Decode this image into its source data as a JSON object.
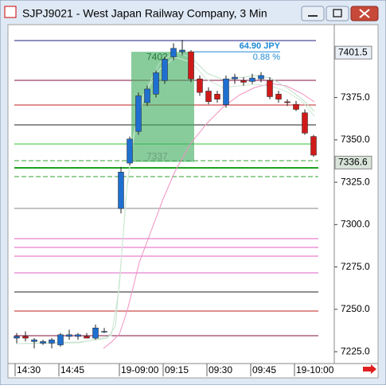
{
  "chart_data": {
    "type": "candlestick",
    "title": "SJPJ9021 - West Japan Railway Company, 3 Min",
    "categories": [
      "14:30",
      null,
      null,
      null,
      null,
      "14:45",
      null,
      null,
      null,
      null,
      null,
      "19-09:00",
      null,
      null,
      null,
      null,
      "09:15",
      null,
      null,
      null,
      null,
      "09:30",
      null,
      null,
      null,
      null,
      "09:45",
      null,
      null,
      null,
      null,
      "19-10:00",
      null,
      null
    ],
    "open": [
      7233,
      7234,
      7231,
      7230,
      7230,
      7229,
      7234,
      7234,
      7234,
      7233,
      7237,
      7309.5,
      7336.3,
      7355,
      7372,
      7377,
      7385,
      7399,
      7402,
      7402,
      7386,
      7378.8,
      7377,
      7370.8,
      7386,
      7385,
      7384.5,
      7386,
      7385,
      7377,
      7372.5,
      7371,
      7366,
      7352
    ],
    "high": [
      7236,
      7237,
      7233,
      7232,
      7233,
      7236,
      7238,
      7236,
      7236,
      7241,
      7239,
      7334,
      7352,
      7378,
      7382,
      7391,
      7399,
      7407,
      7409,
      7403,
      7388,
      7381,
      7379,
      7388,
      7389,
      7387,
      7389,
      7390,
      7387,
      7379,
      7374,
      7373,
      7368,
      7353
    ],
    "low": [
      7230,
      7231,
      7227,
      7229,
      7227,
      7228,
      7232,
      7232,
      7233,
      7232,
      7236,
      7306.6,
      7335,
      7353,
      7370,
      7375,
      7383,
      7397,
      7400,
      7384,
      7376,
      7371,
      7372,
      7369,
      7383,
      7382,
      7383,
      7384,
      7374,
      7372,
      7370,
      7367,
      7353,
      7340
    ],
    "close": [
      7234,
      7233,
      7232,
      7231,
      7232,
      7235,
      7235,
      7235,
      7233,
      7239,
      7237,
      7331,
      7350.5,
      7376,
      7380,
      7389.6,
      7397.6,
      7404,
      7403,
      7386,
      7378,
      7372.6,
      7374,
      7386,
      7387,
      7384,
      7386.5,
      7388,
      7375.5,
      7374,
      7372,
      7368,
      7354,
      7341
    ],
    "up_color": "#1f6fd1",
    "down_color": "#d01a1a",
    "ylim": [
      7218,
      7418
    ],
    "yticks": [
      {
        "value": 7225,
        "label": "7225.0"
      },
      {
        "value": 7250,
        "label": "7250.0"
      },
      {
        "value": 7275,
        "label": "7275.0"
      },
      {
        "value": 7300,
        "label": "7300.0"
      },
      {
        "value": 7325,
        "label": "7325.0"
      },
      {
        "value": 7350,
        "label": "7350.0"
      },
      {
        "value": 7375,
        "label": "7375.0"
      }
    ],
    "price_labels": [
      7401.5,
      7336.6
    ],
    "annotation": {
      "change": "64.90 JPY",
      "percent": "0.88 %",
      "box_high": 7402,
      "box_low": 7337,
      "color": "#1e8ad6"
    }
  }
}
